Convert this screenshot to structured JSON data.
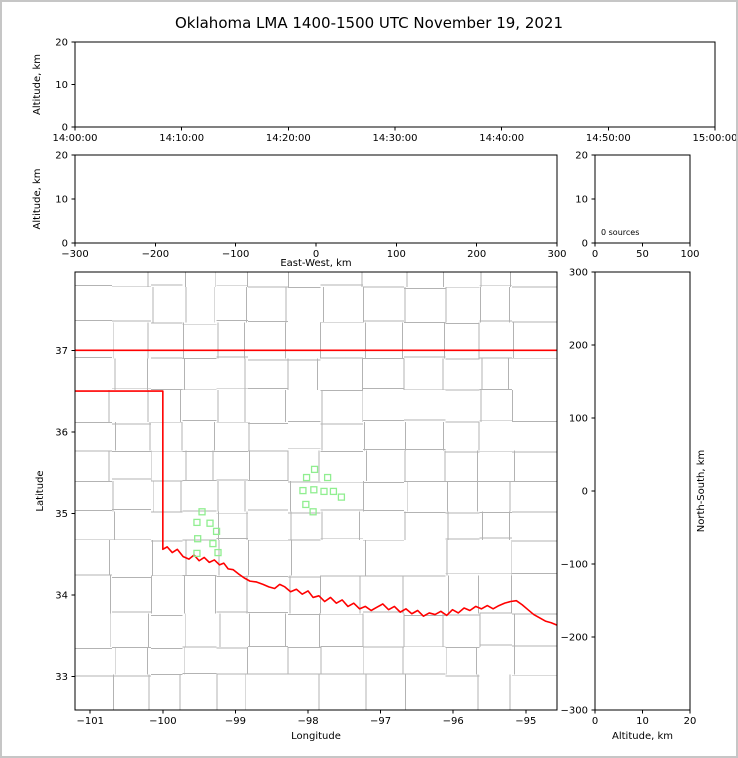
{
  "title": "Oklahoma LMA 1400-1500 UTC November 19, 2021",
  "colors": {
    "state_border": "#ff0000",
    "county_line": "#b3b3b3",
    "station_marker": "#90ee90",
    "axis": "#000000",
    "figure_border": "#c6c6c6",
    "background": "#ffffff"
  },
  "chart_data": [
    {
      "id": "time-altitude-panel",
      "type": "scatter",
      "x_tick_labels": [
        "14:00:00",
        "14:10:00",
        "14:20:00",
        "14:30:00",
        "14:40:00",
        "14:50:00",
        "15:00:00"
      ],
      "ylabel": "Altitude, km",
      "ylim": [
        0,
        20
      ],
      "yticks": [
        0,
        10,
        20
      ],
      "points": []
    },
    {
      "id": "eastwest-altitude-panel",
      "type": "scatter",
      "xlabel": "East-West, km",
      "xlim": [
        -300,
        300
      ],
      "xticks": [
        -300,
        -200,
        -100,
        0,
        100,
        200,
        300
      ],
      "ylabel": "Altitude, km",
      "ylim": [
        0,
        20
      ],
      "yticks": [
        0,
        10,
        20
      ],
      "points": []
    },
    {
      "id": "altitude-histogram-panel",
      "type": "line",
      "xlim": [
        0,
        100
      ],
      "xticks": [
        0,
        50,
        100
      ],
      "ylim": [
        0,
        20
      ],
      "yticks": [
        0,
        10,
        20
      ],
      "annotation": "0 sources",
      "points": []
    },
    {
      "id": "plan-view-map-panel",
      "type": "scatter",
      "xlabel": "Longitude",
      "xlim": [
        -101.21,
        -94.57
      ],
      "xticks": [
        -101,
        -100,
        -99,
        -98,
        -97,
        -96,
        -95
      ],
      "ylabel": "Latitude",
      "ylim": [
        32.59,
        37.96
      ],
      "yticks": [
        33,
        34,
        35,
        36,
        37
      ],
      "green_squares": [
        [
          -99.46,
          35.02
        ],
        [
          -99.53,
          34.89
        ],
        [
          -99.35,
          34.88
        ],
        [
          -99.26,
          34.78
        ],
        [
          -99.52,
          34.69
        ],
        [
          -99.31,
          34.63
        ],
        [
          -99.53,
          34.51
        ],
        [
          -99.24,
          34.52
        ],
        [
          -98.02,
          35.44
        ],
        [
          -97.91,
          35.54
        ],
        [
          -97.73,
          35.44
        ],
        [
          -98.07,
          35.28
        ],
        [
          -97.92,
          35.29
        ],
        [
          -97.78,
          35.27
        ],
        [
          -97.65,
          35.27
        ],
        [
          -97.54,
          35.2
        ],
        [
          -98.03,
          35.11
        ],
        [
          -97.93,
          35.02
        ]
      ],
      "state_border_paths": [
        [
          [
            -101.21,
            37.0
          ],
          [
            -94.57,
            37.0
          ]
        ],
        [
          [
            -101.21,
            36.5
          ],
          [
            -100.0,
            36.5
          ],
          [
            -100.0,
            34.56
          ],
          [
            -99.94,
            34.59
          ],
          [
            -99.87,
            34.52
          ],
          [
            -99.8,
            34.56
          ],
          [
            -99.72,
            34.47
          ],
          [
            -99.64,
            34.44
          ],
          [
            -99.57,
            34.49
          ],
          [
            -99.5,
            34.42
          ],
          [
            -99.43,
            34.46
          ],
          [
            -99.36,
            34.4
          ],
          [
            -99.29,
            34.43
          ],
          [
            -99.22,
            34.37
          ],
          [
            -99.16,
            34.39
          ],
          [
            -99.1,
            34.32
          ],
          [
            -99.03,
            34.31
          ],
          [
            -98.96,
            34.26
          ],
          [
            -98.88,
            34.21
          ],
          [
            -98.8,
            34.17
          ],
          [
            -98.71,
            34.16
          ],
          [
            -98.62,
            34.13
          ],
          [
            -98.54,
            34.1
          ],
          [
            -98.46,
            34.08
          ],
          [
            -98.39,
            34.13
          ],
          [
            -98.32,
            34.1
          ],
          [
            -98.24,
            34.04
          ],
          [
            -98.16,
            34.07
          ],
          [
            -98.08,
            34.01
          ],
          [
            -98.0,
            34.05
          ],
          [
            -97.93,
            33.97
          ],
          [
            -97.85,
            33.99
          ],
          [
            -97.77,
            33.92
          ],
          [
            -97.69,
            33.97
          ],
          [
            -97.61,
            33.9
          ],
          [
            -97.53,
            33.94
          ],
          [
            -97.45,
            33.86
          ],
          [
            -97.37,
            33.9
          ],
          [
            -97.29,
            33.83
          ],
          [
            -97.21,
            33.86
          ],
          [
            -97.13,
            33.81
          ],
          [
            -97.05,
            33.85
          ],
          [
            -96.97,
            33.89
          ],
          [
            -96.89,
            33.82
          ],
          [
            -96.81,
            33.86
          ],
          [
            -96.73,
            33.79
          ],
          [
            -96.65,
            33.83
          ],
          [
            -96.57,
            33.77
          ],
          [
            -96.49,
            33.81
          ],
          [
            -96.41,
            33.74
          ],
          [
            -96.33,
            33.78
          ],
          [
            -96.25,
            33.76
          ],
          [
            -96.17,
            33.8
          ],
          [
            -96.09,
            33.75
          ],
          [
            -96.01,
            33.82
          ],
          [
            -95.93,
            33.78
          ],
          [
            -95.85,
            33.84
          ],
          [
            -95.77,
            33.81
          ],
          [
            -95.69,
            33.86
          ],
          [
            -95.61,
            33.83
          ],
          [
            -95.53,
            33.87
          ],
          [
            -95.45,
            33.83
          ],
          [
            -95.37,
            33.87
          ],
          [
            -95.29,
            33.9
          ],
          [
            -95.21,
            33.92
          ],
          [
            -95.13,
            33.93
          ],
          [
            -95.05,
            33.88
          ],
          [
            -94.97,
            33.82
          ],
          [
            -94.89,
            33.76
          ],
          [
            -94.81,
            33.72
          ],
          [
            -94.73,
            33.68
          ],
          [
            -94.65,
            33.66
          ],
          [
            -94.57,
            33.63
          ]
        ]
      ]
    },
    {
      "id": "northsouth-altitude-panel",
      "type": "scatter",
      "xlabel": "Altitude, km",
      "xlim": [
        0,
        20
      ],
      "xticks": [
        0,
        10,
        20
      ],
      "ylabel_right": "North-South, km",
      "ylim": [
        -300,
        300
      ],
      "yticks": [
        -300,
        -200,
        -100,
        0,
        100,
        200,
        300
      ],
      "points": []
    }
  ]
}
